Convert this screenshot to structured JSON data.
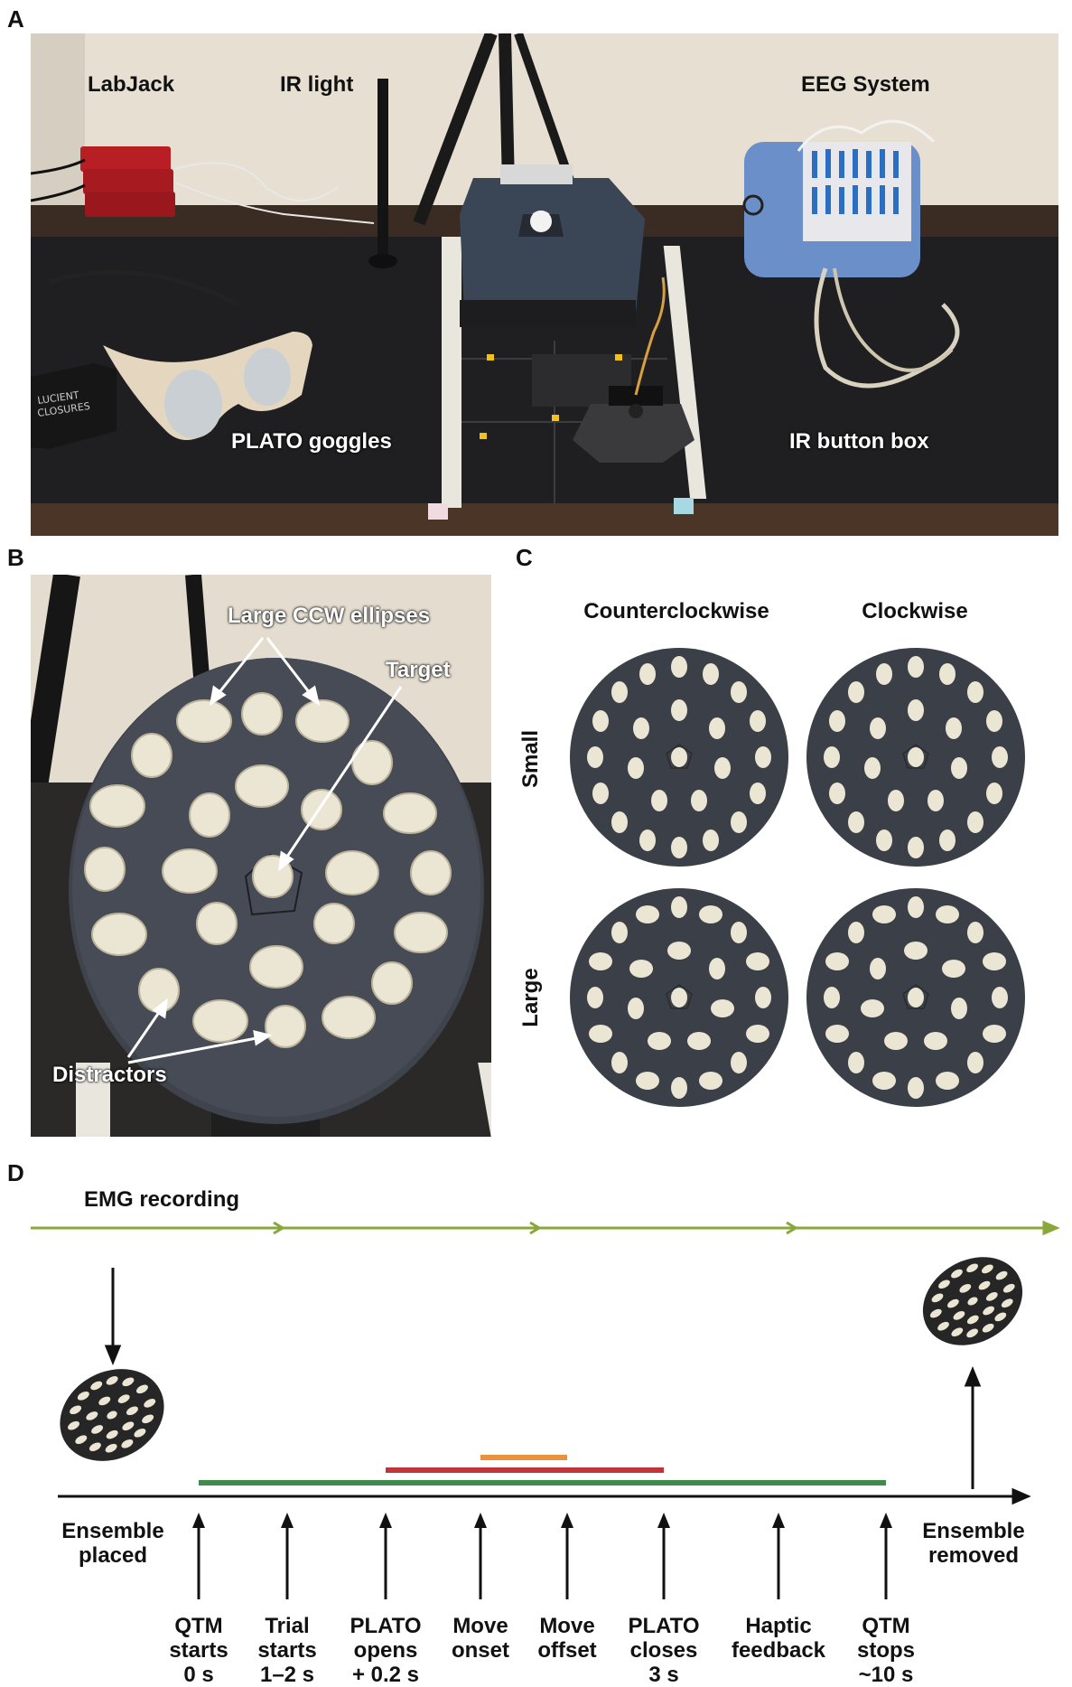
{
  "panels": {
    "a": "A",
    "b": "B",
    "c": "C",
    "d": "D"
  },
  "panel_a": {
    "labels": {
      "labjack": "LabJack",
      "ir_light": "IR light",
      "eeg": "EEG System",
      "goggles": "PLATO goggles",
      "button_box": "IR button box"
    },
    "case_text": "LUCIENT\nCLOSURES"
  },
  "panel_b": {
    "labels": {
      "large_ccw": "Large CCW ellipses",
      "target": "Target",
      "distractors": "Distractors"
    }
  },
  "panel_c": {
    "columns": [
      "Counterclockwise",
      "Clockwise"
    ],
    "rows": [
      "Small",
      "Large"
    ]
  },
  "panel_d": {
    "emg_label": "EMG recording",
    "left_label": [
      "Ensemble",
      "placed"
    ],
    "right_label": [
      "Ensemble",
      "removed"
    ],
    "events": [
      {
        "lines": [
          "QTM",
          "starts",
          "0 s"
        ]
      },
      {
        "lines": [
          "Trial",
          "starts",
          "1–2 s"
        ]
      },
      {
        "lines": [
          "PLATO",
          "opens",
          "+ 0.2 s"
        ]
      },
      {
        "lines": [
          "Move",
          "onset"
        ]
      },
      {
        "lines": [
          "Move",
          "offset"
        ]
      },
      {
        "lines": [
          "PLATO",
          "closes",
          "3 s"
        ]
      },
      {
        "lines": [
          "Haptic",
          "feedback"
        ]
      },
      {
        "lines": [
          "QTM",
          "stops",
          "~10 s"
        ]
      }
    ],
    "colors": {
      "emg": "#8aa83a",
      "qtm_bar": "#3f8a4f",
      "plato_bar": "#c0343a",
      "move_bar": "#e8923c"
    }
  }
}
